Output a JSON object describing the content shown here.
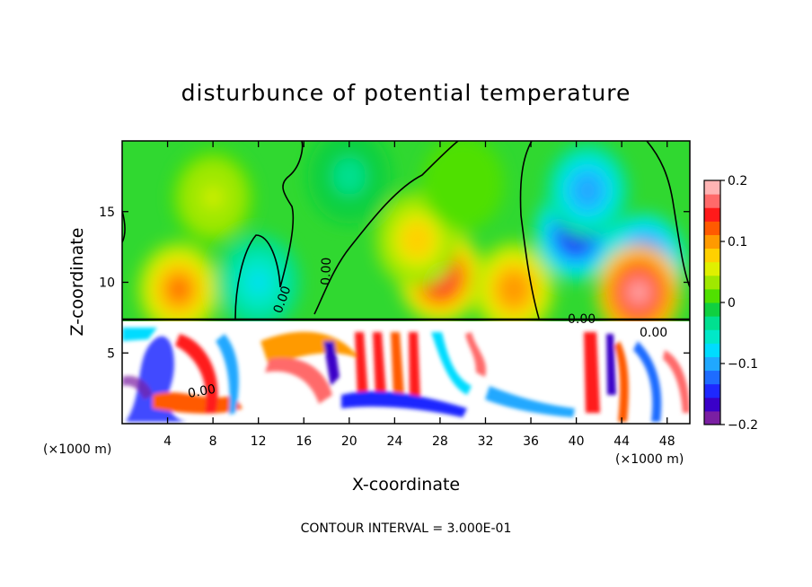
{
  "chart_data": {
    "type": "heatmap",
    "title": "disturbunce of potential temperature",
    "xlabel": "X-coordinate",
    "ylabel": "Z-coordinate",
    "x_unit_label_left": "(×1000 m)",
    "x_unit_label_right": "(×1000 m)",
    "xlim": [
      0,
      50
    ],
    "ylim": [
      0,
      20
    ],
    "x_ticks": [
      "4",
      "8",
      "12",
      "16",
      "20",
      "24",
      "28",
      "32",
      "36",
      "40",
      "44",
      "48"
    ],
    "x_tick_values": [
      4,
      8,
      12,
      16,
      20,
      24,
      28,
      32,
      36,
      40,
      44,
      48
    ],
    "y_ticks": [
      "5",
      "10",
      "15"
    ],
    "y_tick_values": [
      5,
      10,
      15
    ],
    "colorbar": {
      "range": [
        -0.2,
        0.2
      ],
      "tick_labels": [
        "0.2",
        "0.1",
        "0",
        "−0.1",
        "−0.2"
      ],
      "tick_values": [
        0.2,
        0.1,
        0,
        -0.1,
        -0.2
      ],
      "colors": [
        "#7a1fa2",
        "#3a00c8",
        "#1e28ff",
        "#1e6cff",
        "#20a8ff",
        "#00dcff",
        "#00e8c8",
        "#00e090",
        "#10d040",
        "#50e000",
        "#a0e800",
        "#e0f000",
        "#ffd000",
        "#ff9a00",
        "#ff5a00",
        "#ff1a1a",
        "#ff6a6a",
        "#ffb4b4"
      ]
    },
    "contour_labels": [
      "0.00",
      "0.00",
      "0.00",
      "0.00",
      "0.00"
    ],
    "annotation": "CONTOUR INTERVAL = 3.000E-01",
    "blobs": [
      {
        "x": 5,
        "z": 9.5,
        "v": 0.12
      },
      {
        "x": 12,
        "z": 10.0,
        "v": -0.07
      },
      {
        "x": 28,
        "z": 10.5,
        "v": 0.17
      },
      {
        "x": 26,
        "z": 13.0,
        "v": 0.08
      },
      {
        "x": 34.5,
        "z": 9.5,
        "v": 0.11
      },
      {
        "x": 40,
        "z": 13.5,
        "v": -0.17
      },
      {
        "x": 41,
        "z": 16.5,
        "v": -0.11
      },
      {
        "x": 46,
        "z": 11.5,
        "v": -0.16
      },
      {
        "x": 45.5,
        "z": 9.3,
        "v": 0.19
      },
      {
        "x": 20,
        "z": 17.5,
        "v": -0.03
      },
      {
        "x": 8,
        "z": 16,
        "v": 0.05
      },
      {
        "x": 30,
        "z": 17,
        "v": 0.0
      }
    ]
  }
}
